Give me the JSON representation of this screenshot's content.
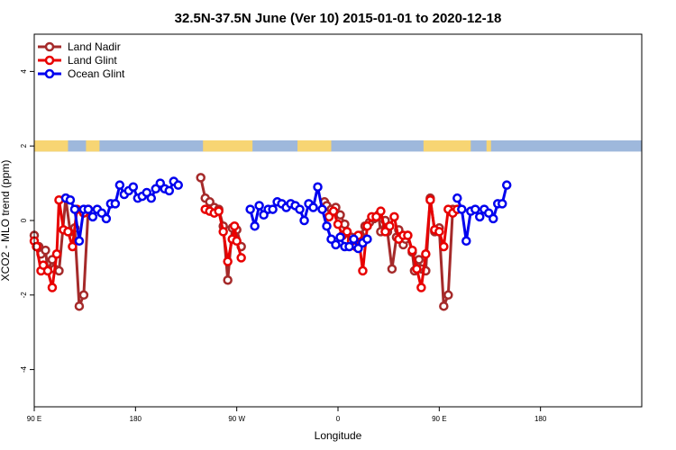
{
  "chart_data": {
    "type": "line",
    "title": "32.5N-37.5N June (Ver 10)   2015-01-01 to 2020-12-18",
    "xlabel": "Longitude",
    "ylabel": "XCO2 - MLO trend (ppm)",
    "xlim": [
      -90,
      180
    ],
    "ylim": [
      -5,
      5
    ],
    "x_ticks": [
      {
        "value": -90,
        "label": "90 E"
      },
      {
        "value": -45,
        "label": "180"
      },
      {
        "value": 0,
        "label": "90 W"
      },
      {
        "value": 45,
        "label": "0"
      },
      {
        "value": 90,
        "label": "90 E"
      },
      {
        "value": 135,
        "label": "180"
      }
    ],
    "y_ticks": [
      -4,
      -2,
      0,
      2,
      4
    ],
    "legend_position": "top-left",
    "land_mask_band": {
      "y_range": [
        1.85,
        2.15
      ],
      "ocean_color": "#9EB8DC",
      "land_color": "#F7D573",
      "land_segments": [
        [
          -90,
          -75
        ],
        [
          -67,
          -61
        ],
        [
          -15,
          7
        ],
        [
          27,
          42
        ],
        [
          83,
          104
        ],
        [
          111,
          113
        ]
      ]
    },
    "series": [
      {
        "name": "Land Nadir",
        "color": "#A52A2A",
        "segments": [
          [
            [
              -90,
              -0.4
            ],
            [
              -88,
              -0.7
            ],
            [
              -87,
              -0.9
            ],
            [
              -85,
              -0.8
            ],
            [
              -84,
              -1.35
            ],
            [
              -82,
              -1.05
            ],
            [
              -81,
              -1.3
            ],
            [
              -79,
              -1.35
            ],
            [
              -76,
              0.6
            ],
            [
              -74,
              -0.3
            ],
            [
              -72,
              -0.2
            ],
            [
              -70,
              -2.3
            ],
            [
              -68,
              -2.0
            ],
            [
              -66,
              0.3
            ]
          ],
          [
            [
              -16,
              1.15
            ],
            [
              -14,
              0.6
            ],
            [
              -12,
              0.5
            ],
            [
              -10,
              0.35
            ],
            [
              -8,
              0.3
            ],
            [
              -6,
              -0.15
            ],
            [
              -4,
              -1.6
            ],
            [
              -2,
              -0.2
            ],
            [
              0,
              -0.25
            ],
            [
              2,
              -0.7
            ]
          ],
          [
            [
              39,
              0.5
            ],
            [
              40,
              0.4
            ],
            [
              42,
              0.3
            ],
            [
              44,
              0.35
            ],
            [
              46,
              0.15
            ],
            [
              48,
              -0.1
            ],
            [
              49,
              -0.3
            ],
            [
              51,
              -0.45
            ],
            [
              53,
              -0.5
            ],
            [
              55,
              -0.4
            ],
            [
              57,
              -0.15
            ],
            [
              59,
              -0.05
            ],
            [
              61,
              0.05
            ],
            [
              63,
              0.15
            ],
            [
              64,
              -0.3
            ],
            [
              66,
              0.0
            ],
            [
              67,
              -0.3
            ],
            [
              69,
              -1.3
            ],
            [
              71,
              -0.45
            ],
            [
              72,
              -0.25
            ],
            [
              74,
              -0.65
            ],
            [
              75,
              -0.5
            ],
            [
              76,
              -0.4
            ],
            [
              78,
              -0.85
            ],
            [
              79,
              -1.35
            ],
            [
              81,
              -1.05
            ],
            [
              82,
              -1.3
            ],
            [
              84,
              -1.35
            ],
            [
              86,
              0.6
            ],
            [
              88,
              -0.3
            ],
            [
              90,
              -0.2
            ],
            [
              92,
              -2.3
            ],
            [
              94,
              -2.0
            ],
            [
              96,
              0.3
            ]
          ]
        ]
      },
      {
        "name": "Land Glint",
        "color": "#E80000",
        "segments": [
          [
            [
              -90,
              -0.55
            ],
            [
              -89,
              -0.7
            ],
            [
              -87,
              -1.35
            ],
            [
              -86,
              -1.2
            ],
            [
              -84,
              -1.35
            ],
            [
              -82,
              -1.8
            ],
            [
              -80,
              -0.9
            ],
            [
              -79,
              0.55
            ],
            [
              -77,
              -0.25
            ],
            [
              -75,
              -0.3
            ],
            [
              -73,
              -0.7
            ],
            [
              -71,
              0.3
            ],
            [
              -68,
              0.2
            ],
            [
              -66,
              0.3
            ]
          ],
          [
            [
              -14,
              0.3
            ],
            [
              -12,
              0.25
            ],
            [
              -10,
              0.2
            ],
            [
              -8,
              0.25
            ],
            [
              -6,
              -0.3
            ],
            [
              -4,
              -1.1
            ],
            [
              -2,
              -0.5
            ],
            [
              -1,
              -0.15
            ],
            [
              0,
              -0.55
            ],
            [
              2,
              -1.0
            ]
          ],
          [
            [
              41,
              0.1
            ],
            [
              43,
              0.25
            ],
            [
              45,
              -0.1
            ],
            [
              47,
              -0.4
            ],
            [
              49,
              -0.3
            ],
            [
              51,
              -0.55
            ],
            [
              53,
              -0.7
            ],
            [
              54,
              -0.4
            ],
            [
              56,
              -1.35
            ],
            [
              58,
              -0.15
            ],
            [
              60,
              0.1
            ],
            [
              62,
              0.1
            ],
            [
              64,
              0.25
            ],
            [
              66,
              -0.3
            ],
            [
              68,
              -0.15
            ],
            [
              70,
              0.1
            ],
            [
              72,
              -0.5
            ],
            [
              74,
              -0.4
            ],
            [
              76,
              -0.4
            ],
            [
              78,
              -0.8
            ],
            [
              80,
              -1.3
            ],
            [
              82,
              -1.8
            ],
            [
              84,
              -0.9
            ],
            [
              86,
              0.55
            ],
            [
              88,
              -0.25
            ],
            [
              90,
              -0.3
            ],
            [
              92,
              -0.7
            ],
            [
              94,
              0.3
            ],
            [
              96,
              0.2
            ],
            [
              98,
              0.3
            ]
          ]
        ]
      },
      {
        "name": "Ocean Glint",
        "color": "#0000EE",
        "segments": [
          [
            [
              -76,
              0.6
            ],
            [
              -74,
              0.55
            ],
            [
              -72,
              0.3
            ],
            [
              -70,
              -0.55
            ],
            [
              -68,
              0.3
            ],
            [
              -66,
              0.3
            ],
            [
              -64,
              0.1
            ],
            [
              -62,
              0.3
            ],
            [
              -60,
              0.2
            ],
            [
              -58,
              0.05
            ],
            [
              -56,
              0.45
            ],
            [
              -54,
              0.45
            ],
            [
              -52,
              0.95
            ],
            [
              -50,
              0.7
            ],
            [
              -48,
              0.8
            ],
            [
              -46,
              0.9
            ],
            [
              -44,
              0.6
            ],
            [
              -42,
              0.65
            ],
            [
              -40,
              0.75
            ],
            [
              -38,
              0.6
            ],
            [
              -36,
              0.85
            ],
            [
              -34,
              1.0
            ],
            [
              -32,
              0.85
            ],
            [
              -30,
              0.8
            ],
            [
              -28,
              1.05
            ],
            [
              -26,
              0.95
            ]
          ],
          [
            [
              6,
              0.3
            ],
            [
              8,
              -0.15
            ],
            [
              10,
              0.4
            ],
            [
              12,
              0.15
            ],
            [
              14,
              0.3
            ],
            [
              16,
              0.3
            ],
            [
              18,
              0.5
            ],
            [
              20,
              0.45
            ],
            [
              22,
              0.35
            ],
            [
              24,
              0.45
            ],
            [
              26,
              0.4
            ],
            [
              28,
              0.3
            ],
            [
              30,
              0.0
            ],
            [
              32,
              0.45
            ],
            [
              34,
              0.35
            ],
            [
              36,
              0.9
            ],
            [
              38,
              0.3
            ],
            [
              40,
              -0.15
            ],
            [
              42,
              -0.5
            ],
            [
              44,
              -0.65
            ],
            [
              46,
              -0.45
            ],
            [
              48,
              -0.7
            ],
            [
              50,
              -0.7
            ],
            [
              52,
              -0.5
            ],
            [
              54,
              -0.75
            ],
            [
              56,
              -0.6
            ],
            [
              58,
              -0.5
            ]
          ],
          [
            [
              98,
              0.6
            ],
            [
              100,
              0.3
            ],
            [
              102,
              -0.55
            ],
            [
              104,
              0.25
            ],
            [
              106,
              0.3
            ],
            [
              108,
              0.1
            ],
            [
              110,
              0.3
            ],
            [
              112,
              0.2
            ],
            [
              114,
              0.05
            ],
            [
              116,
              0.45
            ],
            [
              118,
              0.45
            ],
            [
              120,
              0.95
            ]
          ]
        ]
      }
    ]
  }
}
